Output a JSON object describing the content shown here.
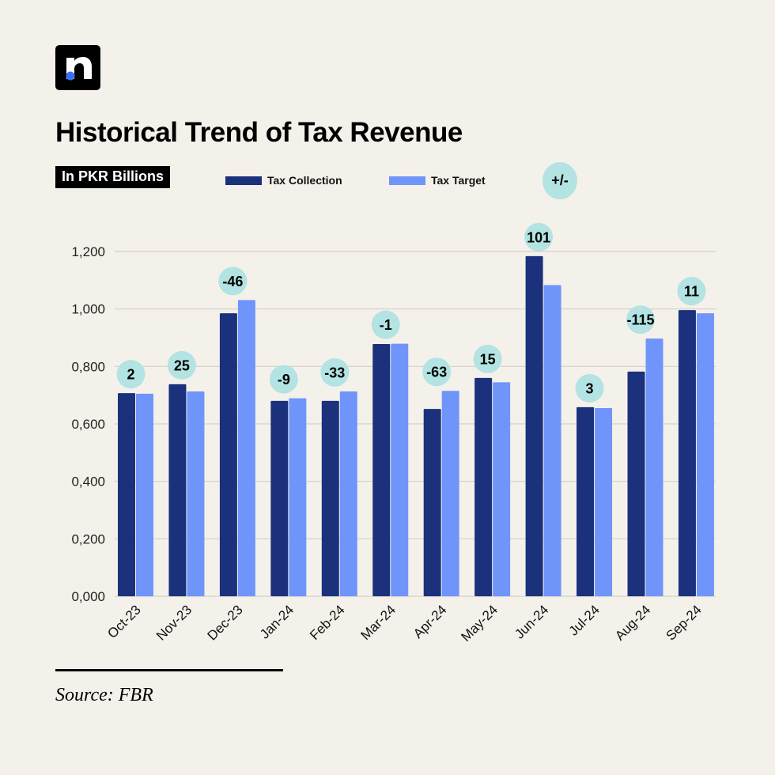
{
  "brand": {
    "logo_letter": "n",
    "logo_dot_color": "#3b6ff5"
  },
  "header": {
    "title": "Historical Trend of Tax Revenue",
    "unit_label": "In PKR Billions",
    "diff_label": "+/-"
  },
  "legend": [
    {
      "label": "Tax Collection",
      "color": "#1b317c"
    },
    {
      "label": "Tax Target",
      "color": "#7095fa"
    }
  ],
  "footer": {
    "source": "Source: FBR"
  },
  "chart_data": {
    "type": "bar",
    "title": "Historical Trend of Tax Revenue",
    "xlabel": "",
    "ylabel": "In PKR Billions",
    "ylim": [
      0,
      1200
    ],
    "yticks": [
      0,
      200,
      400,
      600,
      800,
      1000,
      1200
    ],
    "ytick_labels": [
      "0,000",
      "0,200",
      "0,400",
      "0,600",
      "0,800",
      "1,000",
      "1,200"
    ],
    "grid": true,
    "legend_position": "top",
    "categories": [
      "Oct-23",
      "Nov-23",
      "Dec-23",
      "Jan-24",
      "Feb-24",
      "Mar-24",
      "Apr-24",
      "May-24",
      "Jun-24",
      "Jul-24",
      "Aug-24",
      "Sep-24"
    ],
    "series": [
      {
        "name": "Tax Collection",
        "color": "#1b317c",
        "values": [
          707,
          738,
          985,
          680,
          680,
          878,
          652,
          760,
          1184,
          658,
          782,
          996
        ]
      },
      {
        "name": "Tax Target",
        "color": "#7095fa",
        "values": [
          705,
          713,
          1031,
          689,
          713,
          879,
          715,
          745,
          1083,
          655,
          897,
          985
        ]
      }
    ],
    "difference_labels": [
      "2",
      "25",
      "-46",
      "-9",
      "-33",
      "-1",
      "-63",
      "15",
      "101",
      "3",
      "-115",
      "11"
    ],
    "difference_bubble_color": "#b3e3e3"
  }
}
